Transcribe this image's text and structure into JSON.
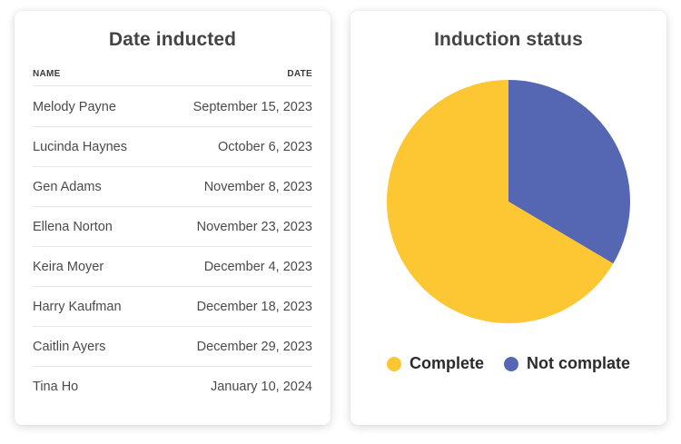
{
  "left_card": {
    "title": "Date inducted",
    "columns": {
      "name": "NAME",
      "date": "DATE"
    },
    "rows": [
      {
        "name": "Melody Payne",
        "date": "September 15, 2023"
      },
      {
        "name": "Lucinda Haynes",
        "date": "October 6, 2023"
      },
      {
        "name": "Gen Adams",
        "date": "November 8, 2023"
      },
      {
        "name": "Ellena Norton",
        "date": "November 23, 2023"
      },
      {
        "name": "Keira Moyer",
        "date": "December 4, 2023"
      },
      {
        "name": "Harry Kaufman",
        "date": "December 18, 2023"
      },
      {
        "name": "Caitlin Ayers",
        "date": "December 29, 2023"
      },
      {
        "name": "Tina Ho",
        "date": "January 10, 2024"
      }
    ]
  },
  "right_card": {
    "title": "Induction status"
  },
  "chart_data": {
    "type": "pie",
    "title": "Induction status",
    "categories": [
      "Complete",
      "Not complate"
    ],
    "values": [
      66.5,
      33.5
    ],
    "colors": [
      "#FCC733",
      "#5567B3"
    ],
    "legend_position": "bottom"
  }
}
